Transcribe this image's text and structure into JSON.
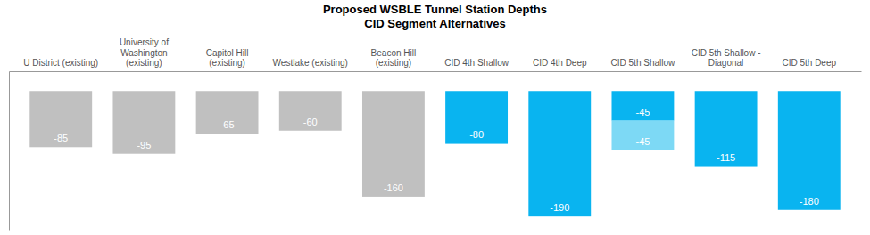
{
  "chart_data": {
    "type": "bar",
    "title": "Proposed WSBLE Tunnel Station Depths",
    "subtitle": "CID Segment Alternatives",
    "categories": [
      "U District (existing)",
      "University of\nWashington (existing)",
      "Capitol Hill (existing)",
      "Westlake (existing)",
      "Beacon Hill (existing)",
      "CID 4th Shallow",
      "CID 4th Deep",
      "CID 5th Shallow",
      "CID 5th Shallow -\nDiagonal",
      "CID 5th Deep"
    ],
    "series": [
      {
        "values": [
          -85,
          -95,
          -65,
          -60,
          -160,
          -80,
          -190,
          -45,
          -115,
          -180
        ],
        "colors": [
          "#c0c0c0",
          "#c0c0c0",
          "#c0c0c0",
          "#c0c0c0",
          "#c0c0c0",
          "#09b4f0",
          "#09b4f0",
          "#09b4f0",
          "#09b4f0",
          "#09b4f0"
        ]
      },
      {
        "values": [
          null,
          null,
          null,
          null,
          null,
          null,
          null,
          -45,
          null,
          null
        ],
        "color": "#7dd9f5"
      }
    ],
    "stacked": true,
    "data_labels": true,
    "tick_labels": "x",
    "ylim": [
      -210,
      30
    ]
  }
}
